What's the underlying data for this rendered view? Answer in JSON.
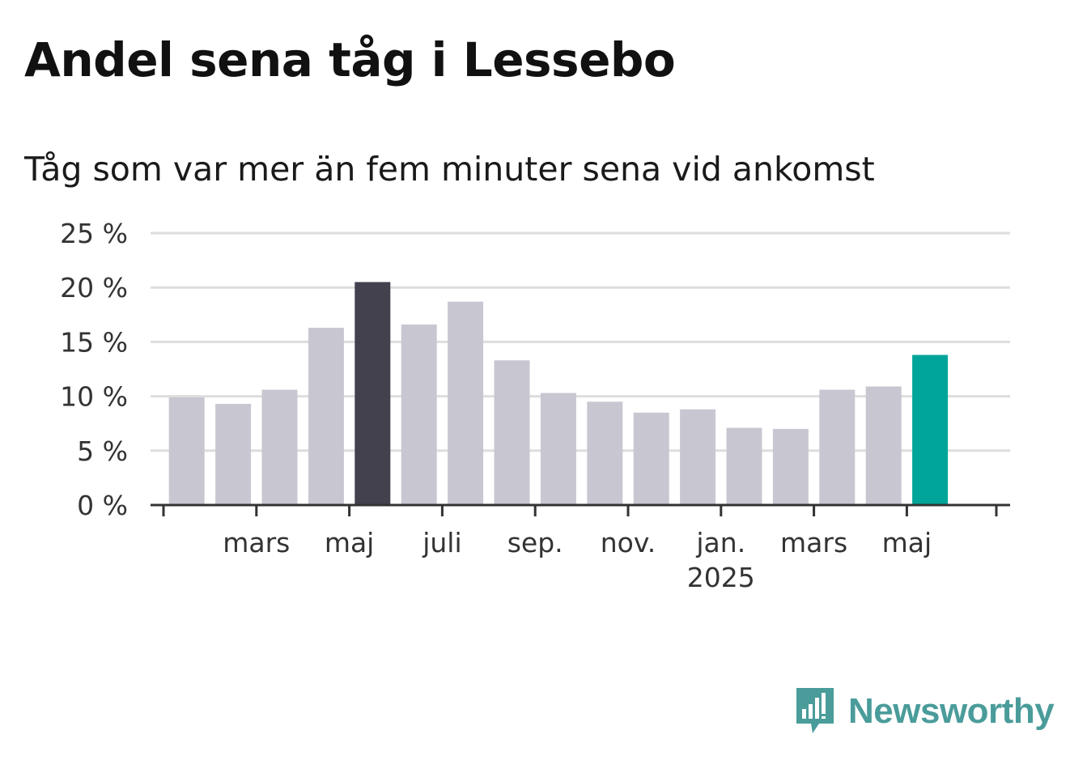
{
  "title": "Andel sena tåg i Lessebo",
  "subtitle": "Tåg som var mer än fem minuter sena vid ankomst",
  "brand": {
    "name": "Newsworthy",
    "icon": "bar-chart-speech-bubble-icon",
    "color": "#4a9c9a"
  },
  "colors": {
    "default_bar": "#c8c7d1",
    "highlight_bar": "#43414e",
    "latest_bar": "#00a59a",
    "grid": "#dddddd",
    "axis": "#333333",
    "tick_text": "#333333"
  },
  "chart_data": {
    "type": "bar",
    "title": "Andel sena tåg i Lessebo",
    "subtitle": "Tåg som var mer än fem minuter sena vid ankomst",
    "xlabel": "",
    "ylabel": "",
    "x_tick_labels": [
      "mars",
      "maj",
      "juli",
      "sep.",
      "nov.",
      "jan.\n2025",
      "mars",
      "maj"
    ],
    "y_tick_labels": [
      "0 %",
      "5 %",
      "10 %",
      "15 %",
      "20 %",
      "25 %"
    ],
    "ylim": [
      0,
      25
    ],
    "grid": true,
    "legend": "none",
    "categories": [
      "2024-02",
      "2024-03",
      "2024-04",
      "2024-05",
      "2024-06",
      "2024-07",
      "2024-08",
      "2024-09",
      "2024-10",
      "2024-11",
      "2024-12",
      "2025-01",
      "2025-02",
      "2025-03",
      "2025-04",
      "2025-05",
      "2025-06"
    ],
    "values": [
      9.9,
      9.3,
      10.6,
      16.3,
      20.5,
      16.6,
      18.7,
      13.3,
      10.3,
      9.5,
      8.5,
      8.8,
      7.1,
      7.0,
      10.6,
      10.9,
      13.8
    ],
    "highlight": {
      "max_index": 4,
      "latest_index": 16
    }
  }
}
